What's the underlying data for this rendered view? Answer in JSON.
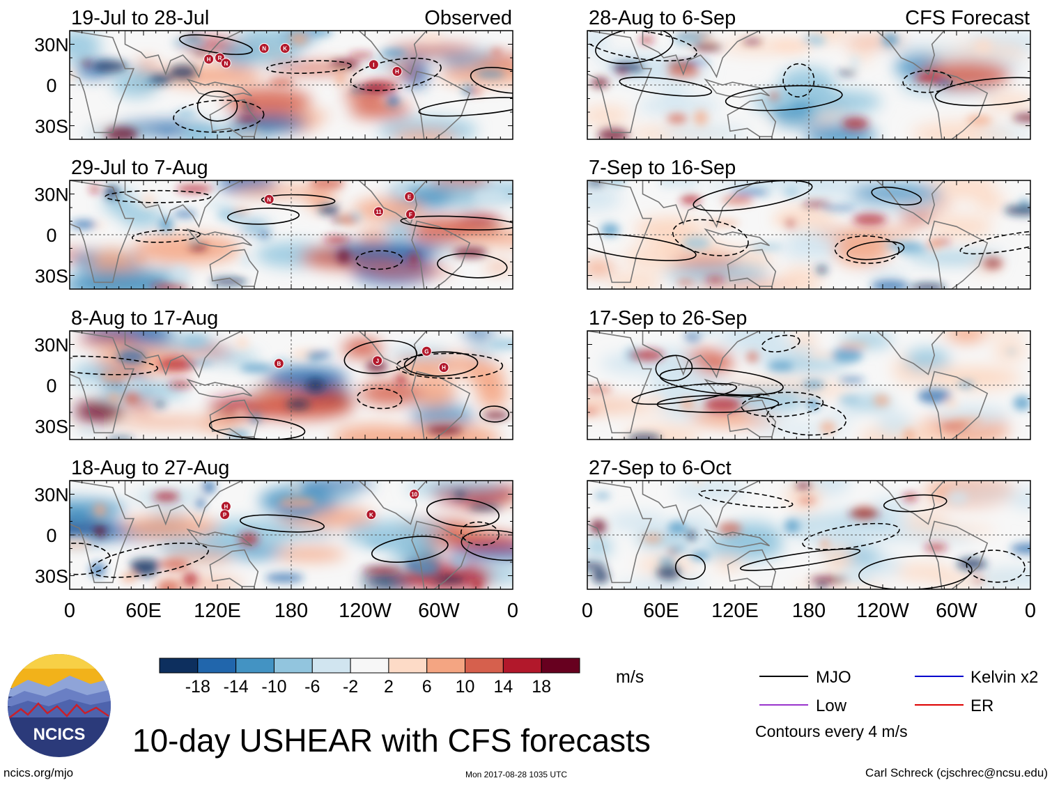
{
  "title": "10-day USHEAR with CFS forecasts",
  "footer": {
    "left": "ncics.org/mjo",
    "center": "Mon 2017-08-28 1035 UTC",
    "right": "Carl Schreck (cjschrec@ncsu.edu)"
  },
  "logo": {
    "text": "NCICS"
  },
  "columns": {
    "left_label": "Observed",
    "right_label": "CFS Forecast"
  },
  "colors": {
    "negative": [
      "#0d2f5e",
      "#2166ac",
      "#4393c3",
      "#92c5de",
      "#d1e5f0"
    ],
    "neutral": "#f7f7f7",
    "positive": [
      "#fddbc7",
      "#f4a582",
      "#d6604d",
      "#b2182b",
      "#67001f"
    ],
    "land": "#777777",
    "legend_mjo": "#000000",
    "legend_kelvin": "#0000cc",
    "legend_low": "#9933cc",
    "legend_er": "#dd0000"
  },
  "colorbar": {
    "unit": "m/s",
    "ticks": [
      "-18",
      "-14",
      "-10",
      "-6",
      "-2",
      "2",
      "6",
      "10",
      "14",
      "18"
    ]
  },
  "legend": {
    "items": [
      {
        "label": "MJO",
        "color_key": "legend_mjo"
      },
      {
        "label": "Kelvin x2",
        "color_key": "legend_kelvin"
      },
      {
        "label": "Low",
        "color_key": "legend_low"
      },
      {
        "label": "ER",
        "color_key": "legend_er"
      }
    ],
    "note": "Contours every 4 m/s"
  },
  "chart_data": [
    {
      "type": "heatmap",
      "column": "observed",
      "title": "19-Jul to 28-Jul",
      "xlabel": "",
      "ylabel": "",
      "x_ticks": [
        "0",
        "60E",
        "120E",
        "180",
        "120W",
        "60W",
        "0"
      ],
      "y_ticks": [
        "30N",
        "0",
        "30S"
      ],
      "xlim": [
        0,
        360
      ],
      "ylim": [
        -40,
        40
      ],
      "storms": [
        {
          "label": "N",
          "lon": 158,
          "lat": 27
        },
        {
          "label": "K",
          "lon": 175,
          "lat": 27
        },
        {
          "label": "H",
          "lon": 113,
          "lat": 19
        },
        {
          "label": "R",
          "lon": 122,
          "lat": 20
        },
        {
          "label": "N",
          "lon": 127,
          "lat": 16
        },
        {
          "label": "I",
          "lon": 247,
          "lat": 15
        },
        {
          "label": "H",
          "lon": 266,
          "lat": 10
        }
      ]
    },
    {
      "type": "heatmap",
      "column": "forecast",
      "title": "28-Aug to 6-Sep",
      "xlabel": "",
      "ylabel": "",
      "x_ticks": [
        "0",
        "60E",
        "120E",
        "180",
        "120W",
        "60W",
        "0"
      ],
      "y_ticks": [
        "30N",
        "0",
        "30S"
      ],
      "xlim": [
        0,
        360
      ],
      "ylim": [
        -40,
        40
      ],
      "storms": []
    },
    {
      "type": "heatmap",
      "column": "observed",
      "title": "29-Jul to 7-Aug",
      "xlabel": "",
      "ylabel": "",
      "x_ticks": [
        "0",
        "60E",
        "120E",
        "180",
        "120W",
        "60W",
        "0"
      ],
      "y_ticks": [
        "30N",
        "0",
        "30S"
      ],
      "xlim": [
        0,
        360
      ],
      "ylim": [
        -40,
        40
      ],
      "storms": [
        {
          "label": "N",
          "lon": 162,
          "lat": 26
        },
        {
          "label": "11",
          "lon": 251,
          "lat": 17
        },
        {
          "label": "E",
          "lon": 276,
          "lat": 28
        },
        {
          "label": "F",
          "lon": 277,
          "lat": 15
        }
      ]
    },
    {
      "type": "heatmap",
      "column": "forecast",
      "title": "7-Sep to 16-Sep",
      "xlabel": "",
      "ylabel": "",
      "x_ticks": [
        "0",
        "60E",
        "120E",
        "180",
        "120W",
        "60W",
        "0"
      ],
      "y_ticks": [
        "30N",
        "0",
        "30S"
      ],
      "xlim": [
        0,
        360
      ],
      "ylim": [
        -40,
        40
      ],
      "storms": []
    },
    {
      "type": "heatmap",
      "column": "observed",
      "title": "8-Aug to 17-Aug",
      "xlabel": "",
      "ylabel": "",
      "x_ticks": [
        "0",
        "60E",
        "120E",
        "180",
        "120W",
        "60W",
        "0"
      ],
      "y_ticks": [
        "30N",
        "0",
        "30S"
      ],
      "xlim": [
        0,
        360
      ],
      "ylim": [
        -40,
        40
      ],
      "storms": [
        {
          "label": "B",
          "lon": 170,
          "lat": 16
        },
        {
          "label": "J",
          "lon": 250,
          "lat": 18
        },
        {
          "label": "G",
          "lon": 290,
          "lat": 25
        },
        {
          "label": "H",
          "lon": 304,
          "lat": 13
        }
      ]
    },
    {
      "type": "heatmap",
      "column": "forecast",
      "title": "17-Sep to 26-Sep",
      "xlabel": "",
      "ylabel": "",
      "x_ticks": [
        "0",
        "60E",
        "120E",
        "180",
        "120W",
        "60W",
        "0"
      ],
      "y_ticks": [
        "30N",
        "0",
        "30S"
      ],
      "xlim": [
        0,
        360
      ],
      "ylim": [
        -40,
        40
      ],
      "storms": []
    },
    {
      "type": "heatmap",
      "column": "observed",
      "title": "18-Aug to 27-Aug",
      "xlabel": "",
      "ylabel": "",
      "x_ticks": [
        "0",
        "60E",
        "120E",
        "180",
        "120W",
        "60W",
        "0"
      ],
      "y_ticks": [
        "30N",
        "0",
        "30S"
      ],
      "xlim": [
        0,
        360
      ],
      "ylim": [
        -40,
        40
      ],
      "storms": [
        {
          "label": "H",
          "lon": 127,
          "lat": 21
        },
        {
          "label": "P",
          "lon": 126,
          "lat": 15
        },
        {
          "label": "K",
          "lon": 245,
          "lat": 15
        },
        {
          "label": "10",
          "lon": 280,
          "lat": 30
        }
      ]
    },
    {
      "type": "heatmap",
      "column": "forecast",
      "title": "27-Sep to 6-Oct",
      "xlabel": "",
      "ylabel": "",
      "x_ticks": [
        "0",
        "60E",
        "120E",
        "180",
        "120W",
        "60W",
        "0"
      ],
      "y_ticks": [
        "30N",
        "0",
        "30S"
      ],
      "xlim": [
        0,
        360
      ],
      "ylim": [
        -40,
        40
      ],
      "storms": []
    }
  ]
}
